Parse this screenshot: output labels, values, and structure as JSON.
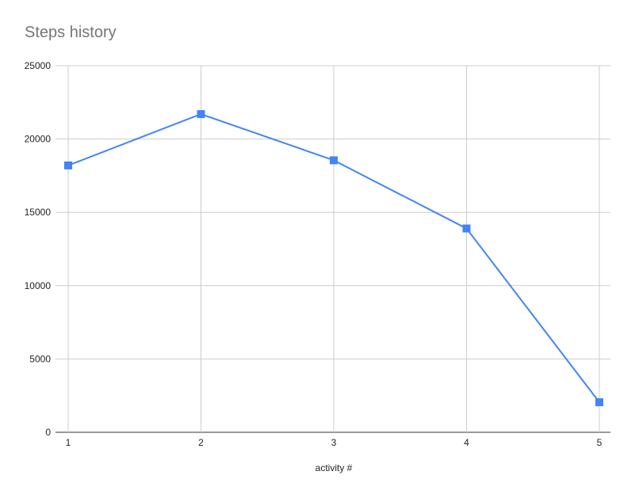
{
  "chart_data": {
    "type": "line",
    "title": "Steps history",
    "xlabel": "activity #",
    "ylabel": "",
    "x": [
      1,
      2,
      3,
      4,
      5
    ],
    "x_ticks": [
      "1",
      "2",
      "3",
      "4",
      "5"
    ],
    "series": [
      {
        "values": [
          18200,
          21700,
          18550,
          13900,
          2050
        ],
        "color": "#4285f4",
        "marker": "square"
      }
    ],
    "ylim": [
      0,
      25000
    ],
    "y_ticks": [
      "0",
      "5000",
      "10000",
      "15000",
      "20000",
      "25000"
    ],
    "grid": true,
    "legend": "none"
  }
}
